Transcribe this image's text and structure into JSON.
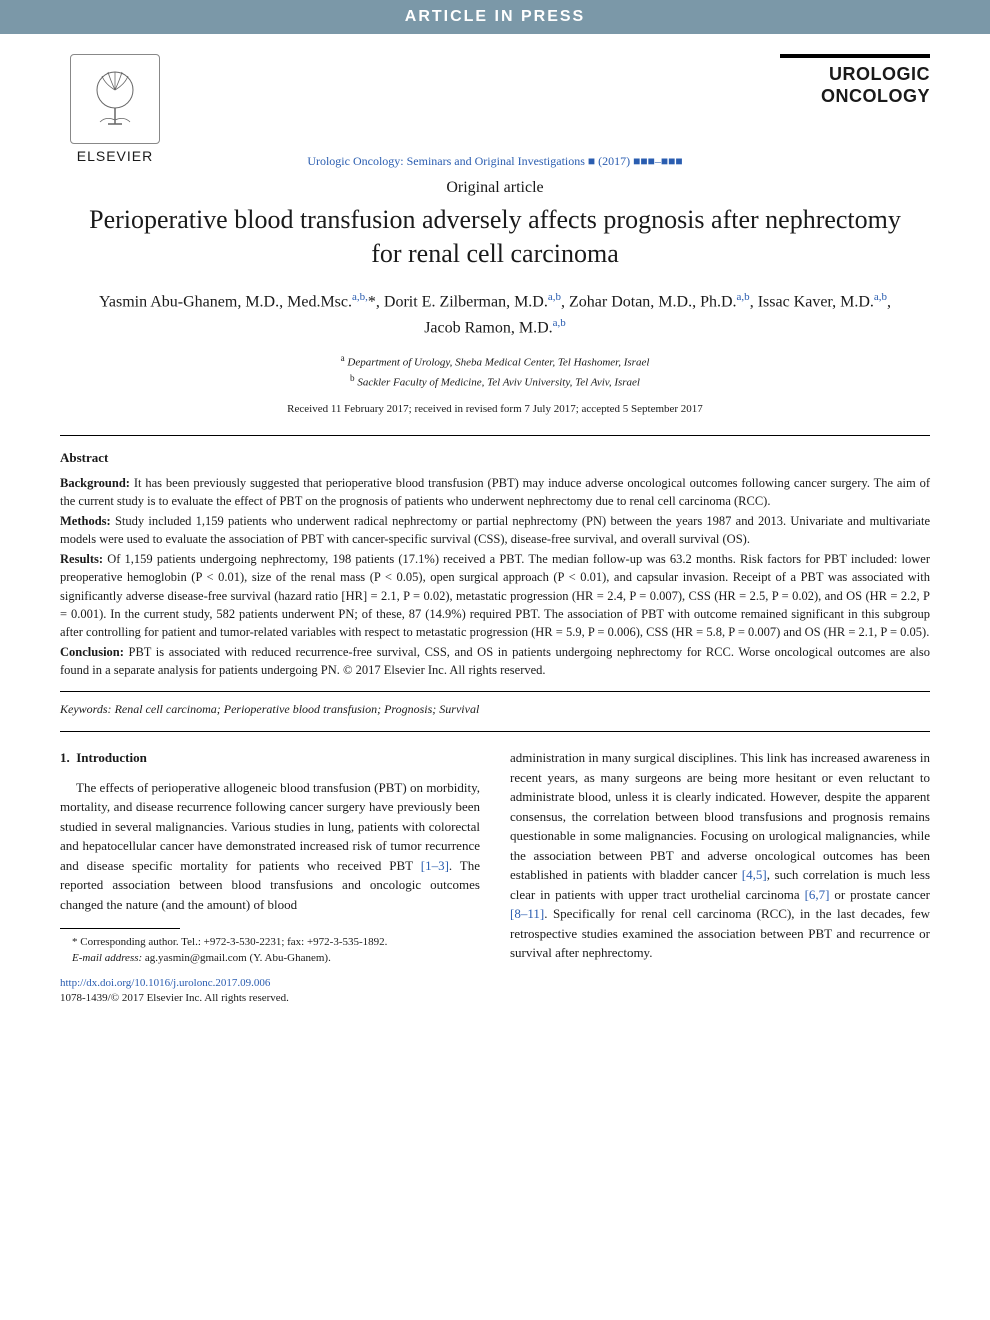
{
  "banner": {
    "text": "ARTICLE IN PRESS",
    "bg": "#7b98a8",
    "fg": "#ffffff"
  },
  "header": {
    "publisher_name": "ELSEVIER",
    "journal_name_line1": "UROLOGIC",
    "journal_name_line2": "ONCOLOGY",
    "citation": "Urologic Oncology: Seminars and Original Investigations ■ (2017) ■■■–■■■"
  },
  "article": {
    "type": "Original article",
    "title": "Perioperative blood transfusion adversely affects prognosis after nephrectomy for renal cell carcinoma",
    "authors_html": "Yasmin Abu-Ghanem, M.D., Med.Msc.<sup>a,b,</sup>*, Dorit E. Zilberman, M.D.<sup>a,b</sup>, Zohar Dotan, M.D., Ph.D.<sup>a,b</sup>, Issac Kaver, M.D.<sup>a,b</sup>, Jacob Ramon, M.D.<sup>a,b</sup>",
    "affiliations": [
      {
        "sup": "a",
        "text": "Department of Urology, Sheba Medical Center, Tel Hashomer, Israel"
      },
      {
        "sup": "b",
        "text": "Sackler Faculty of Medicine, Tel Aviv University, Tel Aviv, Israel"
      }
    ],
    "dates": "Received 11 February 2017; received in revised form 7 July 2017; accepted 5 September 2017"
  },
  "abstract": {
    "heading": "Abstract",
    "paragraphs": [
      {
        "lead": "Background:",
        "text": " It has been previously suggested that perioperative blood transfusion (PBT) may induce adverse oncological outcomes following cancer surgery. The aim of the current study is to evaluate the effect of PBT on the prognosis of patients who underwent nephrectomy due to renal cell carcinoma (RCC)."
      },
      {
        "lead": "Methods:",
        "text": " Study included 1,159 patients who underwent radical nephrectomy or partial nephrectomy (PN) between the years 1987 and 2013. Univariate and multivariate models were used to evaluate the association of PBT with cancer-specific survival (CSS), disease-free survival, and overall survival (OS)."
      },
      {
        "lead": "Results:",
        "text": " Of 1,159 patients undergoing nephrectomy, 198 patients (17.1%) received a PBT. The median follow-up was 63.2 months. Risk factors for PBT included: lower preoperative hemoglobin (P < 0.01), size of the renal mass (P < 0.05), open surgical approach (P < 0.01), and capsular invasion. Receipt of a PBT was associated with significantly adverse disease-free survival (hazard ratio [HR] = 2.1, P = 0.02), metastatic progression (HR = 2.4, P = 0.007), CSS (HR = 2.5, P = 0.02), and OS (HR = 2.2, P = 0.001). In the current study, 582 patients underwent PN; of these, 87 (14.9%) required PBT. The association of PBT with outcome remained significant in this subgroup after controlling for patient and tumor-related variables with respect to metastatic progression (HR = 5.9, P = 0.006), CSS (HR = 5.8, P = 0.007) and OS (HR = 2.1, P = 0.05)."
      },
      {
        "lead": "Conclusion:",
        "text": " PBT is associated with reduced recurrence-free survival, CSS, and OS in patients undergoing nephrectomy for RCC. Worse oncological outcomes are also found in a separate analysis for patients undergoing PN. © 2017 Elsevier Inc. All rights reserved."
      }
    ]
  },
  "keywords": {
    "label": "Keywords:",
    "text": " Renal cell carcinoma; Perioperative blood transfusion; Prognosis; Survival"
  },
  "body": {
    "section_number": "1.",
    "section_title": "Introduction",
    "left_col": "The effects of perioperative allogeneic blood transfusion (PBT) on morbidity, mortality, and disease recurrence following cancer surgery have previously been studied in several malignancies. Various studies in lung, patients with colorectal and hepatocellular cancer have demonstrated increased risk of tumor recurrence and disease specific mortality for patients who received PBT ",
    "left_ref": "[1–3]",
    "left_col_tail": ". The reported association between blood transfusions and oncologic outcomes changed the nature (and the amount) of blood",
    "right_col_a": "administration in many surgical disciplines. This link has increased awareness in recent years, as many surgeons are being more hesitant or even reluctant to administrate blood, unless it is clearly indicated. However, despite the apparent consensus, the correlation between blood transfusions and prognosis remains questionable in some malignancies. Focusing on urological malignancies, while the association between PBT and adverse oncological outcomes has been established in patients with bladder cancer ",
    "right_ref1": "[4,5]",
    "right_col_b": ", such correlation is much less clear in patients with upper tract urothelial carcinoma ",
    "right_ref2": "[6,7]",
    "right_col_c": " or prostate cancer ",
    "right_ref3": "[8–11]",
    "right_col_d": ". Specifically for renal cell carcinoma (RCC), in the last decades, few retrospective studies examined the association between PBT and recurrence or survival after nephrectomy."
  },
  "footnote": {
    "corr": "* Corresponding author. Tel.: +972-3-530-2231; fax: +972-3-535-1892.",
    "email_label": "E-mail address:",
    "email": " ag.yasmin@gmail.com (Y. Abu-Ghanem)."
  },
  "footer": {
    "doi": "http://dx.doi.org/10.1016/j.urolonc.2017.09.006",
    "issn_copyright": "1078-1439/© 2017 Elsevier Inc. All rights reserved."
  },
  "colors": {
    "link": "#2a5db0",
    "text": "#1a1a1a",
    "banner_bg": "#7b98a8"
  }
}
